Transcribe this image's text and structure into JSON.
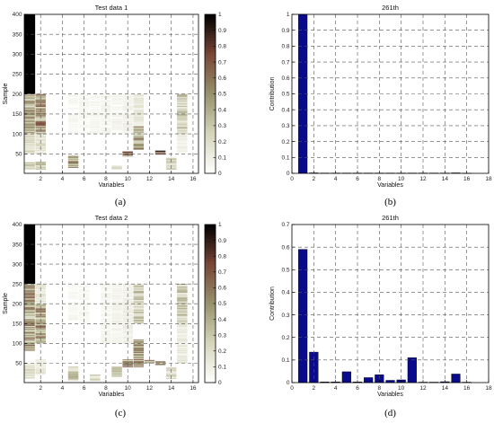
{
  "chart_data": [
    {
      "type": "heatmap",
      "panel_label": "(a)",
      "title": "Test data 1",
      "xlabel": "Variables",
      "ylabel": "Sample",
      "xlim": [
        0.5,
        16.5
      ],
      "ylim": [
        1,
        400
      ],
      "xticks": [
        2,
        4,
        6,
        8,
        10,
        12,
        14,
        16
      ],
      "yticks": [
        50,
        100,
        150,
        200,
        250,
        300,
        350,
        400
      ],
      "colorbar": {
        "min": 0,
        "max": 1,
        "ticks": [
          0,
          0.1,
          0.2,
          0.3,
          0.4,
          0.5,
          0.6,
          0.7,
          0.8,
          0.9,
          1
        ]
      },
      "bands": [
        {
          "col": 1,
          "y0": 200,
          "y1": 400,
          "v": 1
        },
        {
          "col": 1,
          "y0": 100,
          "y1": 200,
          "v": 0.45
        },
        {
          "col": 1,
          "y0": 50,
          "y1": 100,
          "v": 0.22
        },
        {
          "col": 1,
          "y0": 10,
          "y1": 30,
          "v": 0.3
        },
        {
          "col": 2,
          "y0": 100,
          "y1": 200,
          "v": 0.55
        },
        {
          "col": 2,
          "y0": 50,
          "y1": 100,
          "v": 0.18
        },
        {
          "col": 2,
          "y0": 10,
          "y1": 30,
          "v": 0.3
        },
        {
          "col": 5,
          "y0": 15,
          "y1": 45,
          "v": 0.5
        },
        {
          "col": 5,
          "y0": 100,
          "y1": 200,
          "v": 0.05
        },
        {
          "col": 6,
          "y0": 100,
          "y1": 200,
          "v": 0.05
        },
        {
          "col": 7,
          "y0": 100,
          "y1": 200,
          "v": 0.06
        },
        {
          "col": 8,
          "y0": 100,
          "y1": 200,
          "v": 0.06
        },
        {
          "col": 9,
          "y0": 10,
          "y1": 20,
          "v": 0.3
        },
        {
          "col": 9,
          "y0": 100,
          "y1": 200,
          "v": 0.07
        },
        {
          "col": 10,
          "y0": 42,
          "y1": 55,
          "v": 0.6
        },
        {
          "col": 10,
          "y0": 100,
          "y1": 200,
          "v": 0.08
        },
        {
          "col": 11,
          "y0": 60,
          "y1": 120,
          "v": 0.5
        },
        {
          "col": 11,
          "y0": 120,
          "y1": 200,
          "v": 0.15
        },
        {
          "col": 13,
          "y0": 48,
          "y1": 58,
          "v": 0.7
        },
        {
          "col": 14,
          "y0": 10,
          "y1": 40,
          "v": 0.25
        },
        {
          "col": 15,
          "y0": 100,
          "y1": 200,
          "v": 0.3
        },
        {
          "col": 15,
          "y0": 50,
          "y1": 100,
          "v": 0.1
        }
      ]
    },
    {
      "type": "bar",
      "panel_label": "(b)",
      "title": "261th",
      "xlabel": "Variables",
      "ylabel": "Contribution",
      "xlim": [
        0,
        18
      ],
      "ylim": [
        0,
        1
      ],
      "xticks": [
        0,
        2,
        4,
        6,
        8,
        10,
        12,
        14,
        16,
        18
      ],
      "yticks": [
        0,
        0.1,
        0.2,
        0.3,
        0.4,
        0.5,
        0.6,
        0.7,
        0.8,
        0.9,
        1
      ],
      "x": [
        1,
        2,
        3,
        4,
        5,
        6,
        7,
        8,
        9,
        10,
        11,
        12,
        13,
        14,
        15,
        16
      ],
      "values": [
        1.0,
        0.003,
        0.002,
        0.002,
        0.002,
        0.002,
        0.002,
        0.002,
        0.002,
        0.002,
        0.002,
        0.002,
        0.002,
        0.002,
        0.003,
        0.001
      ],
      "bar_color": "#0a0a8c"
    },
    {
      "type": "heatmap",
      "panel_label": "(c)",
      "title": "Test data 2",
      "xlabel": "Variables",
      "ylabel": "Sample",
      "xlim": [
        0.5,
        16.5
      ],
      "ylim": [
        1,
        400
      ],
      "xticks": [
        2,
        4,
        6,
        8,
        10,
        12,
        14,
        16
      ],
      "yticks": [
        50,
        100,
        150,
        200,
        250,
        300,
        350,
        400
      ],
      "colorbar": {
        "min": 0,
        "max": 1,
        "ticks": [
          0,
          0.1,
          0.2,
          0.3,
          0.4,
          0.5,
          0.6,
          0.7,
          0.8,
          0.9,
          1
        ]
      },
      "bands": [
        {
          "col": 1,
          "y0": 250,
          "y1": 400,
          "v": 1
        },
        {
          "col": 1,
          "y0": 80,
          "y1": 250,
          "v": 0.5
        },
        {
          "col": 1,
          "y0": 10,
          "y1": 50,
          "v": 0.2
        },
        {
          "col": 2,
          "y0": 100,
          "y1": 200,
          "v": 0.55
        },
        {
          "col": 2,
          "y0": 200,
          "y1": 250,
          "v": 0.15
        },
        {
          "col": 2,
          "y0": 20,
          "y1": 60,
          "v": 0.15
        },
        {
          "col": 5,
          "y0": 5,
          "y1": 40,
          "v": 0.35
        },
        {
          "col": 5,
          "y0": 150,
          "y1": 250,
          "v": 0.05
        },
        {
          "col": 6,
          "y0": 150,
          "y1": 250,
          "v": 0.05
        },
        {
          "col": 7,
          "y0": 5,
          "y1": 20,
          "v": 0.25
        },
        {
          "col": 8,
          "y0": 100,
          "y1": 250,
          "v": 0.06
        },
        {
          "col": 9,
          "y0": 15,
          "y1": 40,
          "v": 0.3
        },
        {
          "col": 9,
          "y0": 100,
          "y1": 250,
          "v": 0.08
        },
        {
          "col": 10,
          "y0": 40,
          "y1": 60,
          "v": 0.6
        },
        {
          "col": 10,
          "y0": 100,
          "y1": 250,
          "v": 0.1
        },
        {
          "col": 11,
          "y0": 40,
          "y1": 110,
          "v": 0.5
        },
        {
          "col": 11,
          "y0": 150,
          "y1": 250,
          "v": 0.3
        },
        {
          "col": 12,
          "y0": 50,
          "y1": 58,
          "v": 0.5
        },
        {
          "col": 13,
          "y0": 45,
          "y1": 55,
          "v": 0.5
        },
        {
          "col": 14,
          "y0": 10,
          "y1": 40,
          "v": 0.25
        },
        {
          "col": 15,
          "y0": 150,
          "y1": 250,
          "v": 0.3
        },
        {
          "col": 15,
          "y0": 50,
          "y1": 150,
          "v": 0.15
        }
      ]
    },
    {
      "type": "bar",
      "panel_label": "(d)",
      "title": "261th",
      "xlabel": "Variables",
      "ylabel": "Contribution",
      "xlim": [
        0,
        18
      ],
      "ylim": [
        0,
        0.7
      ],
      "xticks": [
        0,
        2,
        4,
        6,
        8,
        10,
        12,
        14,
        16,
        18
      ],
      "yticks": [
        0,
        0.1,
        0.2,
        0.3,
        0.4,
        0.5,
        0.6,
        0.7
      ],
      "x": [
        1,
        2,
        3,
        4,
        5,
        6,
        7,
        8,
        9,
        10,
        11,
        12,
        13,
        14,
        15,
        16
      ],
      "values": [
        0.59,
        0.135,
        0.003,
        0.003,
        0.048,
        0.003,
        0.022,
        0.035,
        0.01,
        0.012,
        0.11,
        0.002,
        0.002,
        0.004,
        0.038,
        0.002
      ],
      "bar_color": "#0a0a8c"
    }
  ]
}
